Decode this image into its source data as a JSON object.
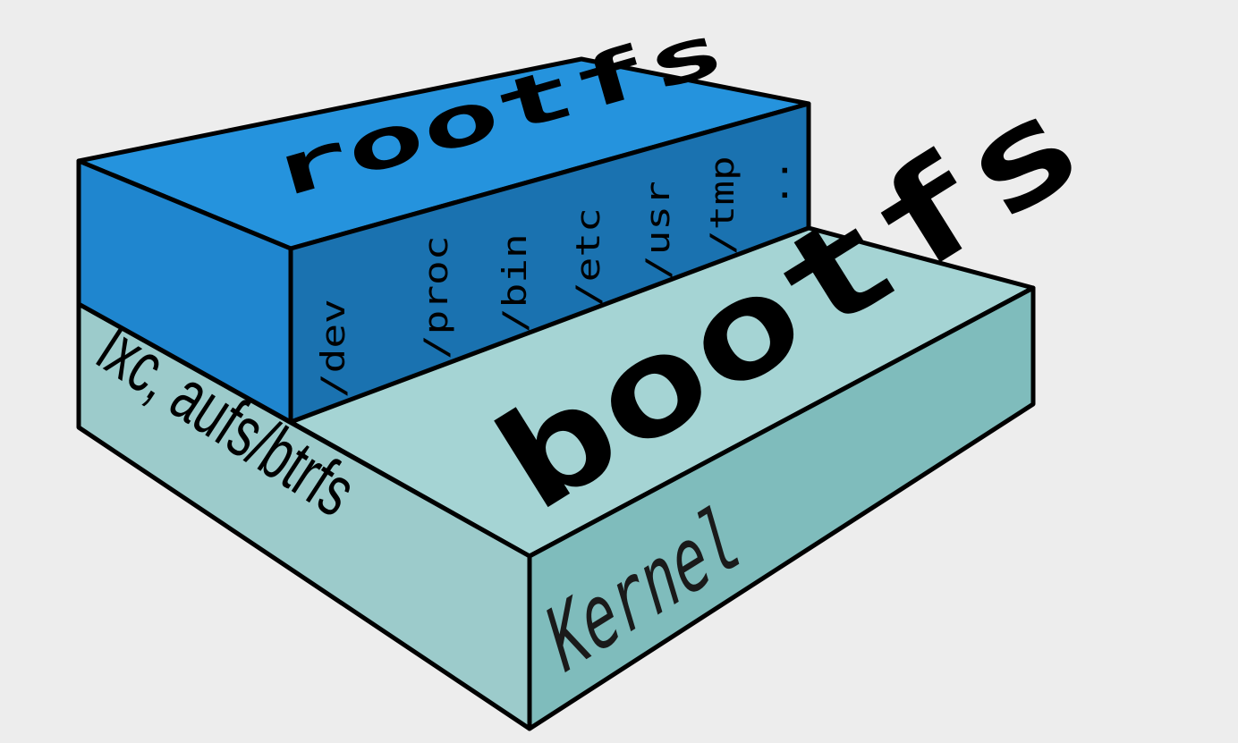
{
  "colors": {
    "background": "#ededed",
    "rootfs_top": "#2593dd",
    "rootfs_front": "#1f86cf",
    "rootfs_side": "#1a72b0",
    "bootfs_top": "#a5d4d4",
    "bootfs_left": "#9ccbcb",
    "bootfs_right": "#7fbcbc",
    "outline": "#000000"
  },
  "layers": {
    "rootfs": {
      "label": "rootfs",
      "dirs": [
        "/dev",
        "/proc",
        "/bin",
        "/etc",
        "/usr",
        "/tmp",
        ".."
      ]
    },
    "bootfs": {
      "label": "bootfs",
      "left_label": "lxc, aufs/btrfs",
      "kernel_label": "Kernel"
    }
  }
}
